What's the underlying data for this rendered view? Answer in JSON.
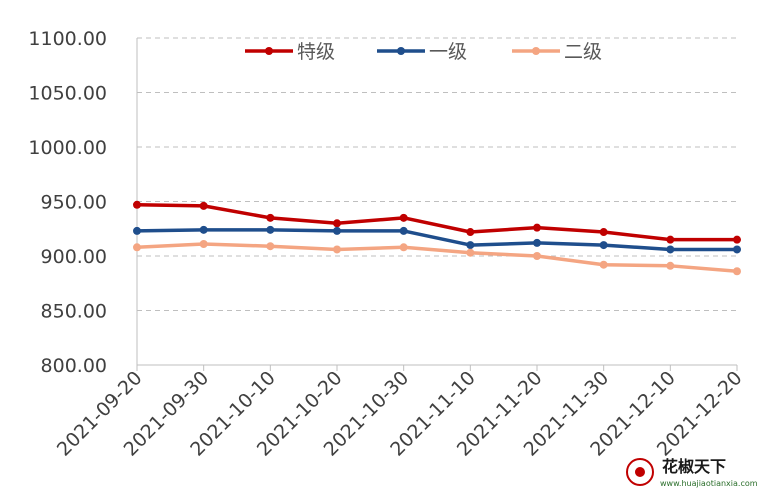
{
  "chart_data": {
    "type": "line",
    "title": "",
    "xlabel": "",
    "ylabel": "",
    "categories": [
      "2021-09-20",
      "2021-09-30",
      "2021-10-10",
      "2021-10-20",
      "2021-10-30",
      "2021-11-10",
      "2021-11-20",
      "2021-11-30",
      "2021-12-10",
      "2021-12-20"
    ],
    "ylim": [
      800,
      1100
    ],
    "yticks": [
      "800.00",
      "850.00",
      "900.00",
      "950.00",
      "1000.00",
      "1050.00",
      "1100.00"
    ],
    "grid": true,
    "legend_position": "top-center",
    "series": [
      {
        "name": "特级",
        "color": "#c00000",
        "values": [
          947,
          946,
          935,
          930,
          935,
          922,
          926,
          922,
          915,
          915
        ]
      },
      {
        "name": "一级",
        "color": "#1f4e8c",
        "values": [
          923,
          924,
          924,
          923,
          923,
          910,
          912,
          910,
          906,
          906
        ]
      },
      {
        "name": "二级",
        "color": "#f4a582",
        "values": [
          908,
          911,
          909,
          906,
          908,
          903,
          900,
          892,
          891,
          886
        ]
      }
    ]
  },
  "watermark": {
    "text": "花椒天下",
    "url": "www.huajiaotianxia.com"
  }
}
